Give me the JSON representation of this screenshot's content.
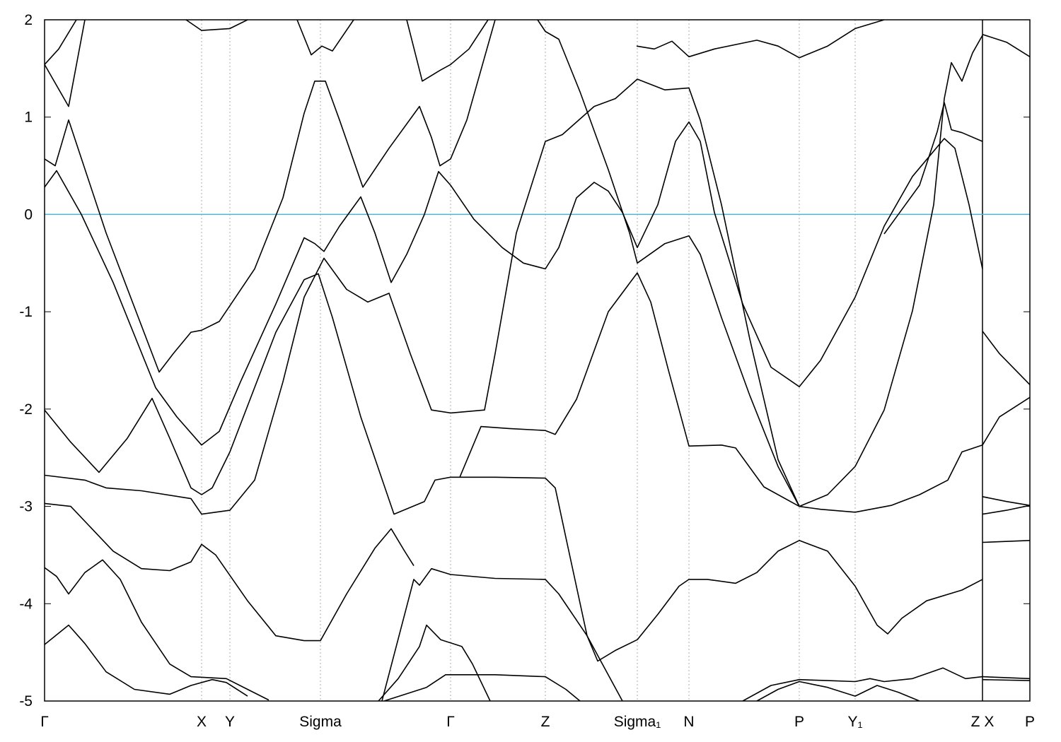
{
  "chart_data": {
    "type": "line",
    "color": "#000000",
    "fermi_level": 0,
    "fermi_color": "#4fb3cf",
    "xgrid": true,
    "discontinuities": [
      1326
    ],
    "xlim": [
      0,
      1393
    ],
    "ylim": [
      -5,
      2
    ],
    "yticks": [
      -5,
      -4,
      -3,
      -2,
      -1,
      0,
      1,
      2
    ],
    "xticks": [
      {
        "value": 0,
        "label": "Γ"
      },
      {
        "value": 222,
        "label": "X"
      },
      {
        "value": 262,
        "label": "Y"
      },
      {
        "value": 390,
        "label": "Sigma"
      },
      {
        "value": 574,
        "label": "Γ"
      },
      {
        "value": 708,
        "label": "Z"
      },
      {
        "value": 838,
        "label": "Sigma₁"
      },
      {
        "value": 911,
        "label": "N"
      },
      {
        "value": 1067,
        "label": "P"
      },
      {
        "value": 1146,
        "label": "Y₁"
      },
      {
        "value": 1326,
        "label": "Z X"
      },
      {
        "value": 1393,
        "label": "P"
      }
    ],
    "series": [
      {
        "x": [
          0,
          15,
          34,
          87,
          162,
          182,
          207,
          222,
          247,
          297,
          337,
          367,
          382,
          397,
          417,
          450,
          487,
          530,
          547,
          559,
          574,
          597,
          637
        ],
        "values": [
          0.57,
          0.5,
          0.97,
          -0.19,
          -1.62,
          -1.43,
          -1.21,
          -1.19,
          -1.1,
          -0.56,
          0.17,
          1.04,
          1.37,
          1.37,
          0.97,
          0.28,
          0.68,
          1.11,
          0.79,
          0.5,
          0.57,
          0.97,
          2.0
        ]
      },
      {
        "x": [
          0,
          17,
          52,
          97,
          157,
          187,
          222,
          247,
          277,
          327,
          367,
          382,
          395,
          417,
          447,
          467,
          490,
          512,
          537,
          557,
          574,
          607,
          647,
          677,
          708,
          727,
          752,
          777,
          797,
          817,
          838,
          867,
          892,
          911,
          927,
          947,
          987,
          1027,
          1067,
          1097,
          1146,
          1187,
          1227,
          1272,
          1287,
          1307,
          1326
        ],
        "values": [
          0.28,
          0.45,
          0.0,
          -0.7,
          -1.78,
          -2.08,
          -2.37,
          -2.23,
          -1.72,
          -0.92,
          -0.24,
          -0.3,
          -0.38,
          -0.12,
          0.18,
          -0.19,
          -0.7,
          -0.41,
          0.0,
          0.44,
          0.3,
          -0.05,
          -0.34,
          -0.5,
          -0.56,
          -0.34,
          0.17,
          0.33,
          0.24,
          0.02,
          -0.34,
          0.1,
          0.75,
          0.95,
          0.75,
          0.02,
          -0.92,
          -1.57,
          -1.77,
          -1.5,
          -0.85,
          -0.12,
          0.39,
          0.78,
          0.68,
          0.1,
          -0.56
        ]
      },
      {
        "x": [
          0,
          37,
          77,
          117,
          152,
          177,
          207,
          222,
          237,
          262,
          327,
          367,
          387,
          407,
          447,
          494,
          537,
          552,
          574,
          637,
          708,
          722,
          737,
          767,
          782,
          807,
          838,
          867,
          897,
          911,
          937,
          977,
          1007,
          1037,
          1067,
          1107,
          1146,
          1177,
          1192,
          1212,
          1247,
          1297,
          1326
        ],
        "values": [
          -2.01,
          -2.34,
          -2.65,
          -2.3,
          -1.89,
          -2.3,
          -2.81,
          -2.88,
          -2.81,
          -2.44,
          -1.21,
          -0.67,
          -0.61,
          -1.06,
          -2.08,
          -3.08,
          -2.95,
          -2.73,
          -2.7,
          -2.7,
          -2.71,
          -2.81,
          -3.32,
          -4.33,
          -4.59,
          -4.48,
          -4.37,
          -4.11,
          -3.82,
          -3.75,
          -3.75,
          -3.79,
          -3.68,
          -3.46,
          -3.35,
          -3.46,
          -3.82,
          -4.22,
          -4.31,
          -4.15,
          -3.97,
          -3.86,
          -3.75
        ]
      },
      {
        "x": [
          0,
          57,
          87,
          137,
          207,
          222,
          262,
          297,
          337,
          367,
          395,
          427,
          457,
          487,
          517,
          547,
          574,
          622,
          637,
          667,
          708,
          732,
          777,
          807,
          838,
          877,
          911,
          927,
          957,
          997,
          1037,
          1067,
          1097,
          1146,
          1197,
          1237,
          1277,
          1297,
          1326
        ],
        "values": [
          -2.68,
          -2.73,
          -2.81,
          -2.84,
          -2.92,
          -3.08,
          -3.04,
          -2.73,
          -1.72,
          -0.85,
          -0.45,
          -0.77,
          -0.9,
          -0.81,
          -1.43,
          -2.01,
          -2.04,
          -2.01,
          -1.43,
          -0.19,
          0.75,
          0.82,
          1.11,
          1.19,
          1.39,
          1.28,
          1.3,
          0.97,
          0.1,
          -1.28,
          -2.52,
          -3.0,
          -3.03,
          -3.06,
          -2.99,
          -2.88,
          -2.73,
          -2.44,
          -2.37
        ]
      },
      {
        "x": [
          697,
          708,
          727,
          757,
          797,
          827,
          838,
          877,
          911,
          927,
          957,
          997,
          1037,
          1067,
          1107,
          1146,
          1187,
          1227,
          1257,
          1272,
          1282,
          1297,
          1312,
          1326
        ],
        "values": [
          2.0,
          1.88,
          1.8,
          1.26,
          0.46,
          -0.19,
          -0.5,
          -0.3,
          -0.22,
          -0.41,
          -1.06,
          -1.86,
          -2.59,
          -3.0,
          -2.88,
          -2.59,
          -2.01,
          -0.99,
          0.1,
          1.19,
          1.56,
          1.37,
          1.66,
          1.84
        ]
      },
      {
        "x": [
          0,
          34,
          57
        ],
        "values": [
          1.54,
          1.11,
          2.0
        ]
      },
      {
        "x": [
          0,
          20,
          45
        ],
        "values": [
          1.54,
          1.7,
          2.0
        ]
      },
      {
        "x": [
          512,
          534,
          559,
          574,
          600,
          627
        ],
        "values": [
          2.0,
          1.37,
          1.48,
          1.54,
          1.7,
          2.0
        ]
      },
      {
        "x": [
          837,
          862,
          887,
          911,
          947,
          1007,
          1037,
          1067,
          1107,
          1146,
          1187
        ],
        "values": [
          1.73,
          1.7,
          1.78,
          1.62,
          1.7,
          1.79,
          1.73,
          1.61,
          1.73,
          1.91,
          2.0
        ]
      },
      {
        "x": [
          357,
          377,
          392,
          407,
          437
        ],
        "values": [
          2.0,
          1.64,
          1.73,
          1.68,
          2.0
        ]
      },
      {
        "x": [
          200,
          222,
          262,
          287
        ],
        "values": [
          2.0,
          1.89,
          1.91,
          2.0
        ]
      },
      {
        "x": [
          0,
          37,
          97,
          137,
          177,
          207,
          222,
          242,
          287,
          327,
          367,
          390,
          427,
          467,
          490,
          509,
          522
        ],
        "values": [
          -2.97,
          -3.0,
          -3.46,
          -3.64,
          -3.66,
          -3.57,
          -3.39,
          -3.5,
          -3.97,
          -4.33,
          -4.38,
          -4.38,
          -3.9,
          -3.43,
          -3.23,
          -3.46,
          -3.61
        ]
      },
      {
        "x": [
          0,
          17,
          34,
          57,
          82,
          107,
          137,
          177,
          207,
          257,
          287,
          317
        ],
        "values": [
          -3.63,
          -3.72,
          -3.9,
          -3.68,
          -3.55,
          -3.75,
          -4.19,
          -4.62,
          -4.75,
          -4.77,
          -4.88,
          -4.99
        ]
      },
      {
        "x": [
          0,
          34,
          57,
          87,
          127,
          177,
          207,
          237,
          257,
          287
        ],
        "values": [
          -4.42,
          -4.22,
          -4.41,
          -4.7,
          -4.88,
          -4.93,
          -4.84,
          -4.78,
          -4.81,
          -4.95
        ]
      },
      {
        "x": [
          472,
          500,
          530,
          540,
          560,
          590,
          605,
          630
        ],
        "values": [
          -5.0,
          -4.77,
          -4.44,
          -4.22,
          -4.37,
          -4.44,
          -4.62,
          -5.0
        ]
      },
      {
        "x": [
          477,
          522,
          530,
          547,
          574,
          637,
          708,
          727,
          767,
          817
        ],
        "values": [
          -5.0,
          -3.75,
          -3.81,
          -3.64,
          -3.7,
          -3.74,
          -3.75,
          -3.9,
          -4.33,
          -5.0
        ]
      },
      {
        "x": [
          480,
          540,
          567,
          637,
          708,
          737,
          757
        ],
        "values": [
          -5.0,
          -4.86,
          -4.73,
          -4.73,
          -4.75,
          -4.88,
          -5.0
        ]
      },
      {
        "x": [
          987,
          1027,
          1067,
          1107,
          1146,
          1167,
          1187,
          1227,
          1270,
          1302,
          1326
        ],
        "values": [
          -5.0,
          -4.84,
          -4.78,
          -4.79,
          -4.8,
          -4.77,
          -4.8,
          -4.77,
          -4.66,
          -4.77,
          -4.75
        ]
      },
      {
        "x": [
          1007,
          1037,
          1067,
          1107,
          1146,
          1177,
          1207,
          1237
        ],
        "values": [
          -5.0,
          -4.88,
          -4.8,
          -4.86,
          -4.95,
          -4.84,
          -4.91,
          -5.0
        ]
      },
      {
        "x": [
          1187,
          1237,
          1262,
          1272,
          1282,
          1297,
          1326
        ],
        "values": [
          -0.2,
          0.3,
          0.85,
          1.15,
          0.87,
          0.84,
          0.75
        ]
      },
      {
        "x": [
          587,
          617,
          657,
          708,
          722,
          752,
          797,
          838,
          857,
          882,
          911,
          957,
          977,
          1017,
          1067
        ],
        "values": [
          -2.7,
          -2.18,
          -2.2,
          -2.22,
          -2.26,
          -1.9,
          -1.0,
          -0.6,
          -0.9,
          -1.6,
          -2.38,
          -2.37,
          -2.4,
          -2.8,
          -3.0
        ]
      },
      {
        "x": [
          1326,
          1360,
          1393
        ],
        "values": [
          1.85,
          1.77,
          1.62
        ]
      },
      {
        "x": [
          1326,
          1350,
          1393
        ],
        "values": [
          -1.2,
          -1.43,
          -1.75
        ]
      },
      {
        "x": [
          1326,
          1350,
          1393
        ],
        "values": [
          -2.37,
          -2.08,
          -1.88
        ]
      },
      {
        "x": [
          1326,
          1360,
          1393
        ],
        "values": [
          -2.9,
          -2.95,
          -2.99
        ]
      },
      {
        "x": [
          1326,
          1360,
          1393
        ],
        "values": [
          -3.08,
          -3.04,
          -2.99
        ]
      },
      {
        "x": [
          1326,
          1393
        ],
        "values": [
          -3.37,
          -3.35
        ]
      },
      {
        "x": [
          1326,
          1393
        ],
        "values": [
          -4.75,
          -4.77
        ]
      },
      {
        "x": [
          1326,
          1393
        ],
        "values": [
          -4.78,
          -4.79
        ]
      }
    ]
  }
}
